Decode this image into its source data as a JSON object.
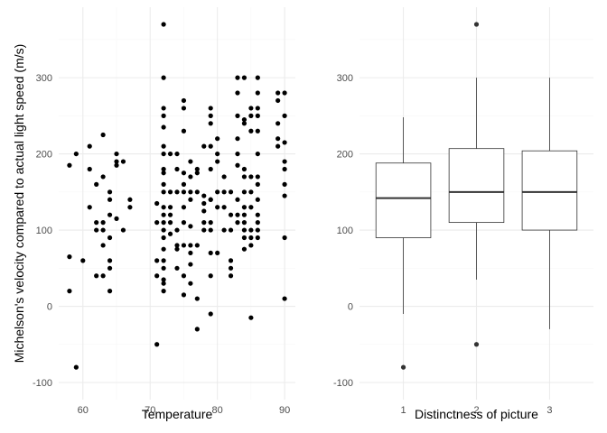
{
  "chart_data": [
    {
      "type": "scatter",
      "xlabel": "Temperature",
      "ylabel": "Michelson's velocity compared to actual light speed (m/s)",
      "xlim": [
        56.4,
        91.6
      ],
      "ylim": [
        -122.5,
        392.5
      ],
      "xticks": [
        60,
        70,
        80,
        90
      ],
      "yticks": [
        -100,
        0,
        100,
        200,
        300
      ],
      "grid": true,
      "x": [
        58,
        58,
        58,
        59,
        59,
        60,
        61,
        61,
        61,
        62,
        62,
        62,
        62,
        63,
        63,
        63,
        63,
        63,
        63,
        64,
        64,
        64,
        64,
        64,
        64,
        64,
        65,
        65,
        65,
        65,
        66,
        66,
        67,
        67,
        71,
        71,
        71,
        71,
        71,
        72,
        72,
        72,
        72,
        72,
        72,
        72,
        72,
        72,
        72,
        72,
        72,
        72,
        72,
        72,
        72,
        72,
        72,
        72,
        72,
        72,
        72,
        73,
        73,
        73,
        73,
        73,
        73,
        74,
        74,
        74,
        74,
        74,
        74,
        74,
        75,
        75,
        75,
        75,
        75,
        75,
        75,
        75,
        75,
        75,
        75,
        76,
        76,
        76,
        76,
        76,
        76,
        76,
        76,
        76,
        77,
        77,
        77,
        77,
        77,
        77,
        78,
        78,
        78,
        78,
        78,
        78,
        79,
        79,
        79,
        79,
        79,
        79,
        79,
        79,
        79,
        79,
        79,
        79,
        80,
        80,
        80,
        80,
        80,
        80,
        81,
        81,
        81,
        81,
        82,
        82,
        82,
        82,
        82,
        82,
        83,
        83,
        83,
        83,
        83,
        83,
        83,
        83,
        83,
        84,
        84,
        84,
        84,
        84,
        84,
        84,
        84,
        84,
        84,
        84,
        84,
        85,
        85,
        85,
        85,
        85,
        85,
        85,
        85,
        85,
        85,
        86,
        86,
        86,
        86,
        86,
        86,
        86,
        86,
        86,
        86,
        86,
        86,
        86,
        89,
        89,
        89,
        89,
        89,
        90,
        90,
        90,
        90,
        90,
        90,
        90,
        90,
        90
      ],
      "y": [
        185,
        65,
        20,
        -80,
        200,
        60,
        210,
        180,
        130,
        40,
        100,
        160,
        110,
        170,
        225,
        110,
        40,
        100,
        80,
        90,
        50,
        60,
        20,
        150,
        120,
        140,
        190,
        185,
        200,
        115,
        190,
        100,
        140,
        130,
        40,
        60,
        110,
        135,
        -50,
        370,
        300,
        250,
        260,
        235,
        210,
        180,
        175,
        160,
        150,
        130,
        120,
        100,
        90,
        75,
        60,
        50,
        35,
        30,
        20,
        110,
        200,
        110,
        200,
        130,
        150,
        95,
        120,
        80,
        100,
        150,
        75,
        50,
        180,
        200,
        270,
        260,
        230,
        175,
        160,
        150,
        130,
        110,
        80,
        40,
        15,
        190,
        170,
        150,
        140,
        105,
        80,
        70,
        55,
        30,
        -30,
        10,
        80,
        175,
        150,
        180,
        210,
        110,
        100,
        125,
        135,
        145,
        -10,
        40,
        70,
        100,
        110,
        140,
        180,
        240,
        260,
        250,
        210,
        140,
        220,
        200,
        150,
        190,
        130,
        70,
        170,
        150,
        100,
        130,
        150,
        60,
        120,
        100,
        50,
        40,
        300,
        280,
        250,
        220,
        200,
        185,
        140,
        120,
        110,
        300,
        170,
        245,
        120,
        90,
        75,
        110,
        100,
        180,
        130,
        240,
        150,
        -15,
        260,
        150,
        90,
        170,
        250,
        230,
        130,
        100,
        80,
        280,
        300,
        260,
        250,
        230,
        200,
        170,
        160,
        140,
        120,
        110,
        100,
        90,
        280,
        270,
        240,
        210,
        220,
        250,
        280,
        215,
        160,
        145,
        190,
        180,
        90,
        10
      ]
    },
    {
      "type": "box",
      "xlabel": "Distinctness of picture",
      "ylabel": "",
      "ylim": [
        -122.5,
        392.5
      ],
      "yticks": [
        -100,
        0,
        100,
        200,
        300
      ],
      "categories": [
        "1",
        "2",
        "3"
      ],
      "grid": true,
      "boxes": [
        {
          "q1": 90,
          "median": 142,
          "q3": 188,
          "whisker_low": -10,
          "whisker_high": 248,
          "outliers": [
            -80
          ]
        },
        {
          "q1": 110,
          "median": 150,
          "q3": 207,
          "whisker_low": 35,
          "whisker_high": 300,
          "outliers": [
            370,
            -50
          ]
        },
        {
          "q1": 100,
          "median": 150,
          "q3": 204,
          "whisker_low": -30,
          "whisker_high": 300,
          "outliers": []
        }
      ]
    }
  ]
}
